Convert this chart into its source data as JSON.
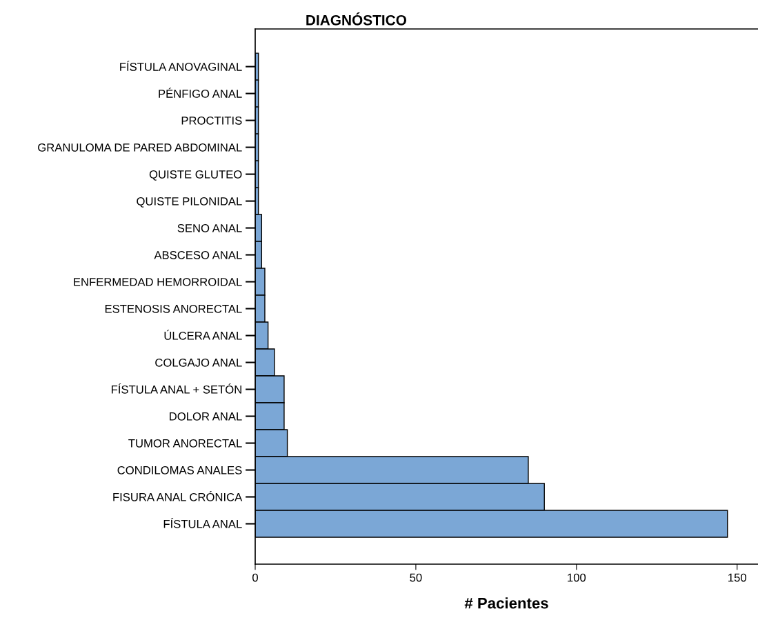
{
  "chart_data": {
    "type": "bar",
    "orientation": "horizontal",
    "title": "DIAGNÓSTICO",
    "xlabel": "# Pacientes",
    "categories": [
      "FÍSTULA ANOVAGINAL",
      "PÉNFIGO ANAL",
      "PROCTITIS",
      "GRANULOMA DE PARED ABDOMINAL",
      "QUISTE GLUTEO",
      "QUISTE PILONIDAL",
      "SENO ANAL",
      "ABSCESO ANAL",
      "ENFERMEDAD HEMORROIDAL",
      "ESTENOSIS ANORECTAL",
      "ÚLCERA ANAL",
      "COLGAJO ANAL",
      "FÍSTULA ANAL + SETÓN",
      "DOLOR ANAL",
      "TUMOR ANORECTAL",
      "CONDILOMAS ANALES",
      "FISURA ANAL CRÓNICA",
      "FÍSTULA ANAL"
    ],
    "values": [
      1,
      1,
      1,
      1,
      1,
      1,
      2,
      2,
      3,
      3,
      4,
      6,
      9,
      9,
      10,
      85,
      90,
      147
    ],
    "color": "#7ba7d6",
    "xlim": [
      0,
      156.5
    ],
    "xticks": [
      0,
      50,
      100,
      150
    ],
    "grid": false
  }
}
